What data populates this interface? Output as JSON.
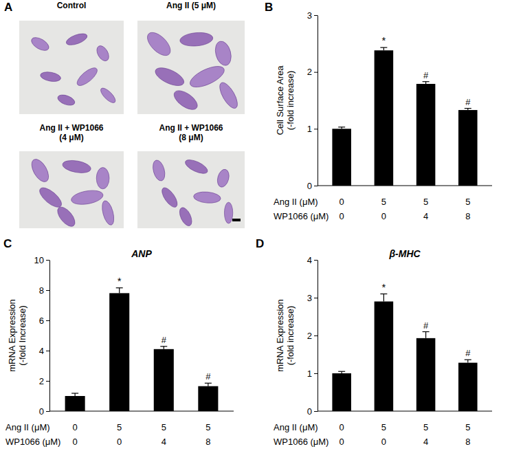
{
  "image_panel": {
    "panel": "A",
    "titles": [
      [
        "Control"
      ],
      [
        "Ang II (5 μM)"
      ],
      [
        "Ang II + WP1066",
        "(4 μM)"
      ],
      [
        "Ang II + WP1066",
        "(8 μM)"
      ]
    ]
  },
  "chart_data": [
    {
      "type": "bar",
      "panel": "B",
      "y_label": [
        "Cell Surface Area",
        "(-fold increase)"
      ],
      "categories": [
        null,
        null,
        null,
        null
      ],
      "values": [
        1.0,
        2.38,
        1.79,
        1.33
      ],
      "errors": [
        0.03,
        0.05,
        0.04,
        0.03
      ],
      "value_annotations": [
        null,
        "*",
        "#",
        "#"
      ],
      "color": "#000000",
      "ylim": [
        0,
        3
      ],
      "yticks": [
        0,
        1,
        2,
        3
      ],
      "x_table": [
        {
          "label": "Ang II (μM)",
          "values": [
            0,
            5,
            5,
            5
          ]
        },
        {
          "label": "WP1066 (μM)",
          "values": [
            0,
            0,
            4,
            8
          ]
        }
      ]
    },
    {
      "type": "bar",
      "panel": "C",
      "title": "ANP",
      "y_label": [
        "mRNA Expression",
        "(-fold Increase)"
      ],
      "categories": [
        null,
        null,
        null,
        null
      ],
      "values": [
        1.0,
        7.8,
        4.1,
        1.65
      ],
      "errors": [
        0.18,
        0.35,
        0.18,
        0.2
      ],
      "value_annotations": [
        null,
        "*",
        "#",
        "#"
      ],
      "color": "#000000",
      "ylim": [
        0,
        10
      ],
      "yticks": [
        0,
        2,
        4,
        6,
        8,
        10
      ],
      "x_table": [
        {
          "label": "Ang II (μM)",
          "values": [
            0,
            5,
            5,
            5
          ]
        },
        {
          "label": "WP1066 (μM)",
          "values": [
            0,
            0,
            4,
            8
          ]
        }
      ]
    },
    {
      "type": "bar",
      "panel": "D",
      "title": "β-MHC",
      "y_label": [
        "mRNA Expression",
        "(-fold increase)"
      ],
      "categories": [
        null,
        null,
        null,
        null
      ],
      "values": [
        1.0,
        2.9,
        1.93,
        1.28
      ],
      "errors": [
        0.05,
        0.2,
        0.17,
        0.08
      ],
      "value_annotations": [
        null,
        "*",
        "#",
        "#"
      ],
      "color": "#000000",
      "ylim": [
        0,
        4
      ],
      "yticks": [
        0,
        1,
        2,
        3,
        4
      ],
      "x_table": [
        {
          "label": "Ang II (μM)",
          "values": [
            0,
            5,
            5,
            5
          ]
        },
        {
          "label": "WP1066 (μM)",
          "values": [
            0,
            0,
            4,
            8
          ]
        }
      ]
    }
  ]
}
